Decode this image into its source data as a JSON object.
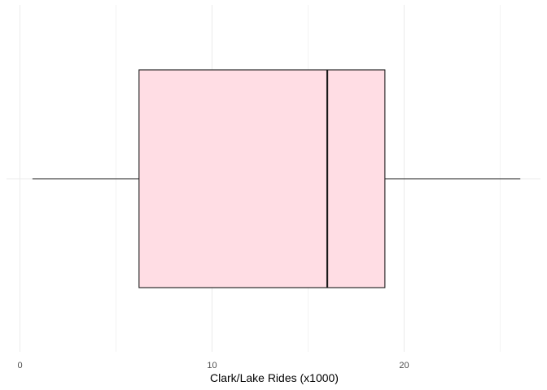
{
  "chart_data": {
    "type": "boxplot",
    "title": "",
    "xlabel": "Clark/Lake Rides (x1000)",
    "ylabel": "",
    "xlim": [
      -0.7,
      27.1
    ],
    "x_ticks": [
      0,
      10,
      20
    ],
    "x_tick_labels": [
      "0",
      "10",
      "20"
    ],
    "grid": true,
    "orientation": "horizontal",
    "series": [
      {
        "min": 0.65,
        "q1": 6.2,
        "median": 16.0,
        "q3": 19.0,
        "max": 26.05
      }
    ],
    "colors": {
      "box_fill": "#ffdde4",
      "box_stroke": "#1a1a1a",
      "grid_major": "#ebebeb",
      "grid_minor": "#f3f3f3",
      "median": "#1a1a1a"
    }
  }
}
